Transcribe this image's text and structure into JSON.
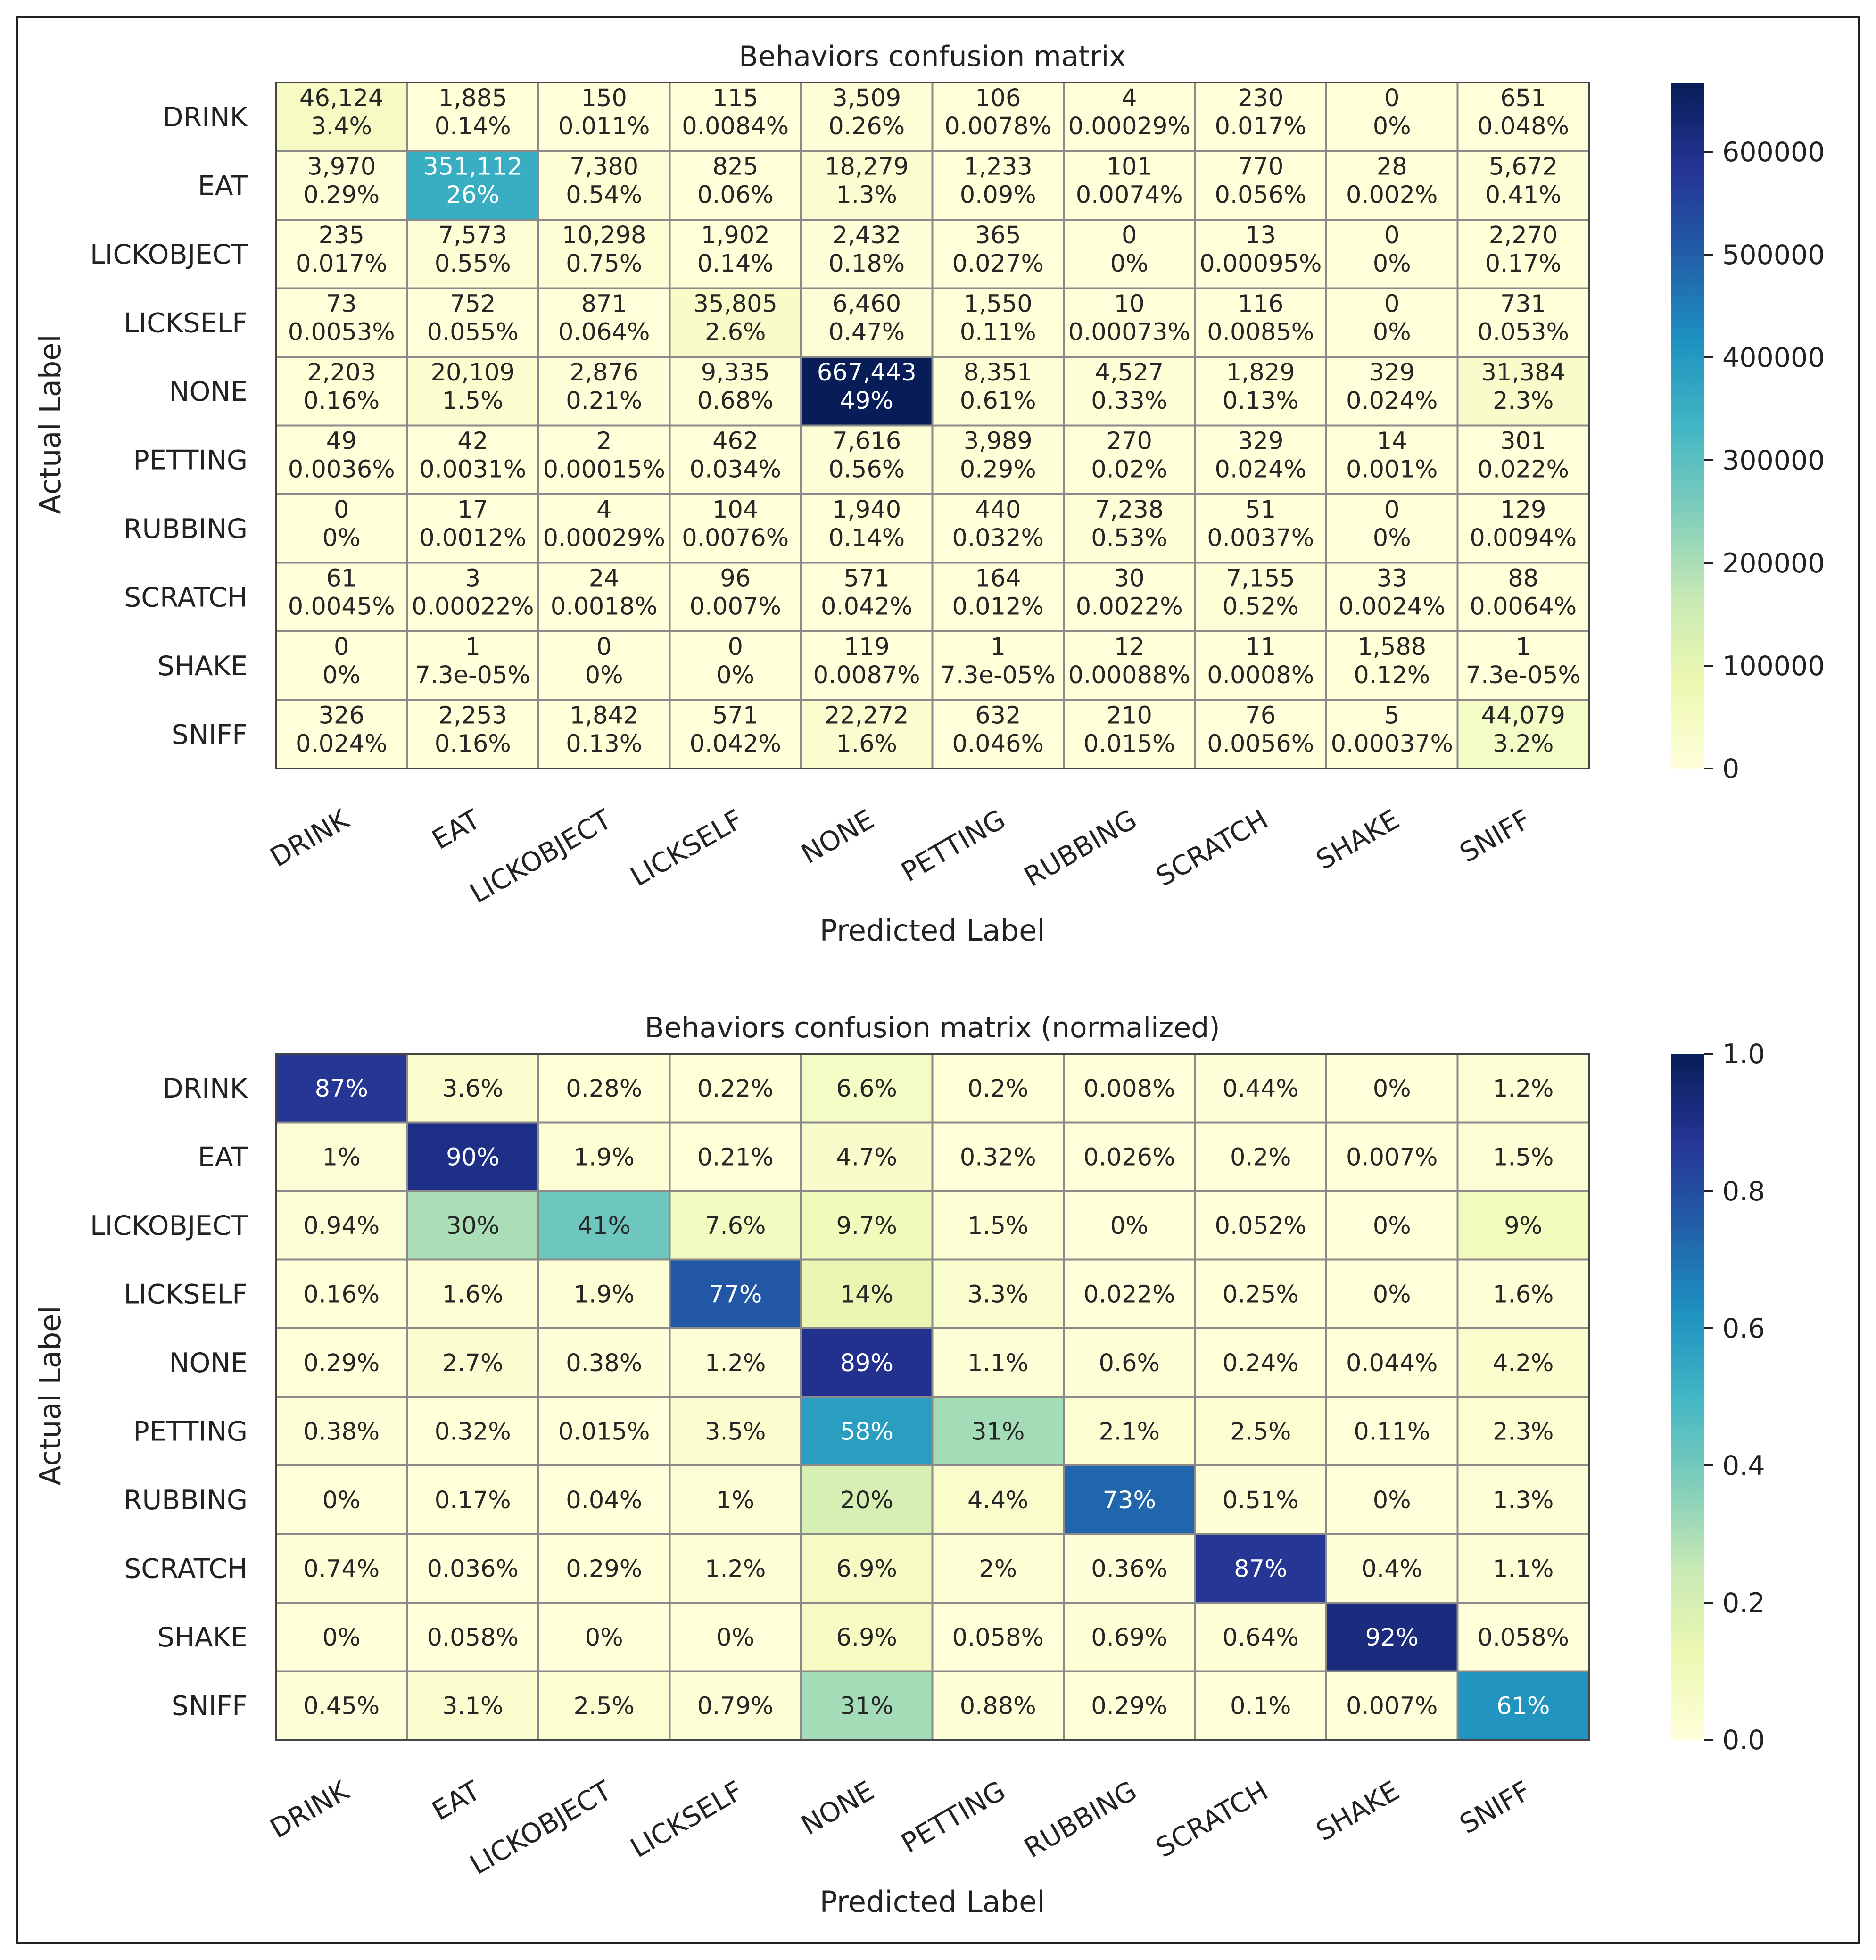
{
  "chart_data": [
    {
      "type": "heatmap",
      "title": "Behaviors confusion matrix",
      "xlabel": "Predicted Label",
      "ylabel": "Actual Label",
      "categories": [
        "DRINK",
        "EAT",
        "LICKOBJECT",
        "LICKSELF",
        "NONE",
        "PETTING",
        "RUBBING",
        "SCRATCH",
        "SHAKE",
        "SNIFF"
      ],
      "colorscale": "YlGnBu",
      "vmin": 0,
      "vmax": 667443,
      "colorbar_ticks": [
        "0",
        "100000",
        "200000",
        "300000",
        "400000",
        "500000",
        "600000"
      ],
      "colorbar_tick_values": [
        0,
        100000,
        200000,
        300000,
        400000,
        500000,
        600000
      ],
      "values": [
        [
          46124,
          1885,
          150,
          115,
          3509,
          106,
          4,
          230,
          0,
          651
        ],
        [
          3970,
          351112,
          7380,
          825,
          18279,
          1233,
          101,
          770,
          28,
          5672
        ],
        [
          235,
          7573,
          10298,
          1902,
          2432,
          365,
          0,
          13,
          0,
          2270
        ],
        [
          73,
          752,
          871,
          35805,
          6460,
          1550,
          10,
          116,
          0,
          731
        ],
        [
          2203,
          20109,
          2876,
          9335,
          667443,
          8351,
          4527,
          1829,
          329,
          31384
        ],
        [
          49,
          42,
          2,
          462,
          7616,
          3989,
          270,
          329,
          14,
          301
        ],
        [
          0,
          17,
          4,
          104,
          1940,
          440,
          7238,
          51,
          0,
          129
        ],
        [
          61,
          3,
          24,
          96,
          571,
          164,
          30,
          7155,
          33,
          88
        ],
        [
          0,
          1,
          0,
          0,
          119,
          1,
          12,
          11,
          1588,
          1
        ],
        [
          326,
          2253,
          1842,
          571,
          22272,
          632,
          210,
          76,
          5,
          44079
        ]
      ],
      "labels": [
        [
          [
            "46,124",
            "3.4%"
          ],
          [
            "1,885",
            "0.14%"
          ],
          [
            "150",
            "0.011%"
          ],
          [
            "115",
            "0.0084%"
          ],
          [
            "3,509",
            "0.26%"
          ],
          [
            "106",
            "0.0078%"
          ],
          [
            "4",
            "0.00029%"
          ],
          [
            "230",
            "0.017%"
          ],
          [
            "0",
            "0%"
          ],
          [
            "651",
            "0.048%"
          ]
        ],
        [
          [
            "3,970",
            "0.29%"
          ],
          [
            "351,112",
            "26%"
          ],
          [
            "7,380",
            "0.54%"
          ],
          [
            "825",
            "0.06%"
          ],
          [
            "18,279",
            "1.3%"
          ],
          [
            "1,233",
            "0.09%"
          ],
          [
            "101",
            "0.0074%"
          ],
          [
            "770",
            "0.056%"
          ],
          [
            "28",
            "0.002%"
          ],
          [
            "5,672",
            "0.41%"
          ]
        ],
        [
          [
            "235",
            "0.017%"
          ],
          [
            "7,573",
            "0.55%"
          ],
          [
            "10,298",
            "0.75%"
          ],
          [
            "1,902",
            "0.14%"
          ],
          [
            "2,432",
            "0.18%"
          ],
          [
            "365",
            "0.027%"
          ],
          [
            "0",
            "0%"
          ],
          [
            "13",
            "0.00095%"
          ],
          [
            "0",
            "0%"
          ],
          [
            "2,270",
            "0.17%"
          ]
        ],
        [
          [
            "73",
            "0.0053%"
          ],
          [
            "752",
            "0.055%"
          ],
          [
            "871",
            "0.064%"
          ],
          [
            "35,805",
            "2.6%"
          ],
          [
            "6,460",
            "0.47%"
          ],
          [
            "1,550",
            "0.11%"
          ],
          [
            "10",
            "0.00073%"
          ],
          [
            "116",
            "0.0085%"
          ],
          [
            "0",
            "0%"
          ],
          [
            "731",
            "0.053%"
          ]
        ],
        [
          [
            "2,203",
            "0.16%"
          ],
          [
            "20,109",
            "1.5%"
          ],
          [
            "2,876",
            "0.21%"
          ],
          [
            "9,335",
            "0.68%"
          ],
          [
            "667,443",
            "49%"
          ],
          [
            "8,351",
            "0.61%"
          ],
          [
            "4,527",
            "0.33%"
          ],
          [
            "1,829",
            "0.13%"
          ],
          [
            "329",
            "0.024%"
          ],
          [
            "31,384",
            "2.3%"
          ]
        ],
        [
          [
            "49",
            "0.0036%"
          ],
          [
            "42",
            "0.0031%"
          ],
          [
            "2",
            "0.00015%"
          ],
          [
            "462",
            "0.034%"
          ],
          [
            "7,616",
            "0.56%"
          ],
          [
            "3,989",
            "0.29%"
          ],
          [
            "270",
            "0.02%"
          ],
          [
            "329",
            "0.024%"
          ],
          [
            "14",
            "0.001%"
          ],
          [
            "301",
            "0.022%"
          ]
        ],
        [
          [
            "0",
            "0%"
          ],
          [
            "17",
            "0.0012%"
          ],
          [
            "4",
            "0.00029%"
          ],
          [
            "104",
            "0.0076%"
          ],
          [
            "1,940",
            "0.14%"
          ],
          [
            "440",
            "0.032%"
          ],
          [
            "7,238",
            "0.53%"
          ],
          [
            "51",
            "0.0037%"
          ],
          [
            "0",
            "0%"
          ],
          [
            "129",
            "0.0094%"
          ]
        ],
        [
          [
            "61",
            "0.0045%"
          ],
          [
            "3",
            "0.00022%"
          ],
          [
            "24",
            "0.0018%"
          ],
          [
            "96",
            "0.007%"
          ],
          [
            "571",
            "0.042%"
          ],
          [
            "164",
            "0.012%"
          ],
          [
            "30",
            "0.0022%"
          ],
          [
            "7,155",
            "0.52%"
          ],
          [
            "33",
            "0.0024%"
          ],
          [
            "88",
            "0.0064%"
          ]
        ],
        [
          [
            "0",
            "0%"
          ],
          [
            "1",
            "7.3e-05%"
          ],
          [
            "0",
            "0%"
          ],
          [
            "0",
            "0%"
          ],
          [
            "119",
            "0.0087%"
          ],
          [
            "1",
            "7.3e-05%"
          ],
          [
            "12",
            "0.00088%"
          ],
          [
            "11",
            "0.0008%"
          ],
          [
            "1,588",
            "0.12%"
          ],
          [
            "1",
            "7.3e-05%"
          ]
        ],
        [
          [
            "326",
            "0.024%"
          ],
          [
            "2,253",
            "0.16%"
          ],
          [
            "1,842",
            "0.13%"
          ],
          [
            "571",
            "0.042%"
          ],
          [
            "22,272",
            "1.6%"
          ],
          [
            "632",
            "0.046%"
          ],
          [
            "210",
            "0.015%"
          ],
          [
            "76",
            "0.0056%"
          ],
          [
            "5",
            "0.00037%"
          ],
          [
            "44,079",
            "3.2%"
          ]
        ]
      ]
    },
    {
      "type": "heatmap",
      "title": "Behaviors confusion matrix (normalized)",
      "xlabel": "Predicted Label",
      "ylabel": "Actual Label",
      "categories": [
        "DRINK",
        "EAT",
        "LICKOBJECT",
        "LICKSELF",
        "NONE",
        "PETTING",
        "RUBBING",
        "SCRATCH",
        "SHAKE",
        "SNIFF"
      ],
      "colorscale": "YlGnBu",
      "vmin": 0,
      "vmax": 1,
      "colorbar_ticks": [
        "0.0",
        "0.2",
        "0.4",
        "0.6",
        "0.8",
        "1.0"
      ],
      "colorbar_tick_values": [
        0,
        0.2,
        0.4,
        0.6,
        0.8,
        1.0
      ],
      "values": [
        [
          0.87,
          0.036,
          0.0028,
          0.0022,
          0.066,
          0.002,
          8e-05,
          0.0044,
          0,
          0.012
        ],
        [
          0.01,
          0.9,
          0.019,
          0.0021,
          0.047,
          0.0032,
          0.00026,
          0.002,
          7e-05,
          0.015
        ],
        [
          0.0094,
          0.3,
          0.41,
          0.076,
          0.097,
          0.015,
          0,
          0.00052,
          0,
          0.09
        ],
        [
          0.0016,
          0.016,
          0.019,
          0.77,
          0.14,
          0.033,
          0.00022,
          0.0025,
          0,
          0.016
        ],
        [
          0.0029,
          0.027,
          0.0038,
          0.012,
          0.89,
          0.011,
          0.006,
          0.0024,
          0.00044,
          0.042
        ],
        [
          0.0038,
          0.0032,
          0.00015,
          0.035,
          0.58,
          0.31,
          0.021,
          0.025,
          0.0011,
          0.023
        ],
        [
          0,
          0.0017,
          0.0004,
          0.01,
          0.2,
          0.044,
          0.73,
          0.0051,
          0,
          0.013
        ],
        [
          0.0074,
          0.00036,
          0.0029,
          0.012,
          0.069,
          0.02,
          0.0036,
          0.87,
          0.004,
          0.011
        ],
        [
          0,
          0.00058,
          0,
          0,
          0.069,
          0.00058,
          0.0069,
          0.0064,
          0.92,
          0.00058
        ],
        [
          0.0045,
          0.031,
          0.025,
          0.0079,
          0.31,
          0.0088,
          0.0029,
          0.001,
          7e-05,
          0.61
        ]
      ],
      "labels": [
        [
          "87%",
          "3.6%",
          "0.28%",
          "0.22%",
          "6.6%",
          "0.2%",
          "0.008%",
          "0.44%",
          "0%",
          "1.2%"
        ],
        [
          "1%",
          "90%",
          "1.9%",
          "0.21%",
          "4.7%",
          "0.32%",
          "0.026%",
          "0.2%",
          "0.007%",
          "1.5%"
        ],
        [
          "0.94%",
          "30%",
          "41%",
          "7.6%",
          "9.7%",
          "1.5%",
          "0%",
          "0.052%",
          "0%",
          "9%"
        ],
        [
          "0.16%",
          "1.6%",
          "1.9%",
          "77%",
          "14%",
          "3.3%",
          "0.022%",
          "0.25%",
          "0%",
          "1.6%"
        ],
        [
          "0.29%",
          "2.7%",
          "0.38%",
          "1.2%",
          "89%",
          "1.1%",
          "0.6%",
          "0.24%",
          "0.044%",
          "4.2%"
        ],
        [
          "0.38%",
          "0.32%",
          "0.015%",
          "3.5%",
          "58%",
          "31%",
          "2.1%",
          "2.5%",
          "0.11%",
          "2.3%"
        ],
        [
          "0%",
          "0.17%",
          "0.04%",
          "1%",
          "20%",
          "4.4%",
          "73%",
          "0.51%",
          "0%",
          "1.3%"
        ],
        [
          "0.74%",
          "0.036%",
          "0.29%",
          "1.2%",
          "6.9%",
          "2%",
          "0.36%",
          "87%",
          "0.4%",
          "1.1%"
        ],
        [
          "0%",
          "0.058%",
          "0%",
          "0%",
          "6.9%",
          "0.058%",
          "0.69%",
          "0.64%",
          "92%",
          "0.058%"
        ],
        [
          "0.45%",
          "3.1%",
          "2.5%",
          "0.79%",
          "31%",
          "0.88%",
          "0.29%",
          "0.1%",
          "0.007%",
          "61%"
        ]
      ]
    }
  ]
}
